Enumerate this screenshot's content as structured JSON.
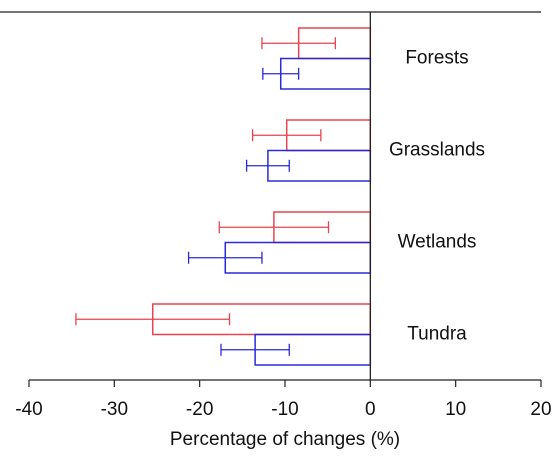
{
  "chart_data": {
    "type": "hbar-error",
    "x_label": "Percentage of changes (%)",
    "categories": [
      "Forests",
      "Grasslands",
      "Wetlands",
      "Tundra"
    ],
    "series": [
      {
        "color": "#e8434f",
        "values": [
          -8.4,
          -9.8,
          -11.3,
          -25.5
        ],
        "errors": [
          4.3,
          4,
          6.4,
          9
        ]
      },
      {
        "color": "#2b2bd6",
        "values": [
          -10.5,
          -12,
          -17,
          -13.5
        ],
        "errors": [
          2.1,
          2.5,
          4.3,
          4
        ]
      }
    ],
    "xlim": [
      -40,
      20
    ],
    "xticks": [
      -40,
      -30,
      -20,
      -10,
      0,
      10,
      20
    ]
  }
}
